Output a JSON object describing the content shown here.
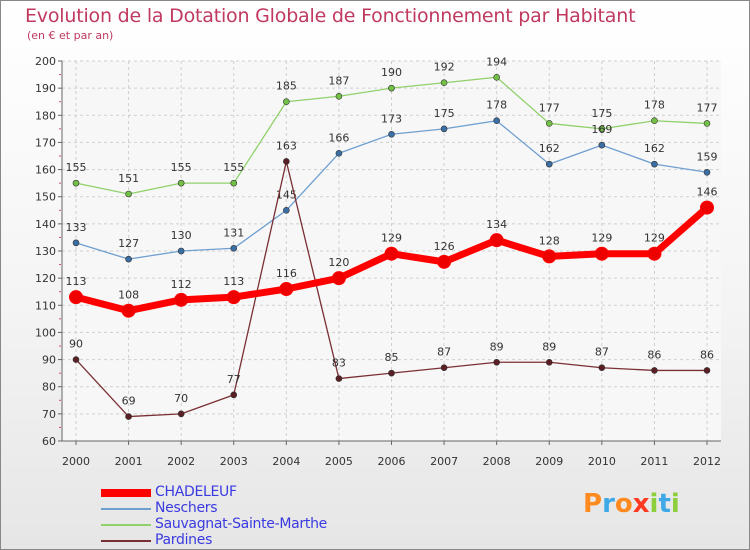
{
  "chart_data": {
    "type": "line",
    "title": "Evolution de la Dotation Globale de Fonctionnement par Habitant",
    "subtitle": "(en € et par an)",
    "x": [
      "2000",
      "2001",
      "2002",
      "2003",
      "2004",
      "2005",
      "2006",
      "2007",
      "2008",
      "2009",
      "2010",
      "2011",
      "2012"
    ],
    "ylim": [
      60,
      200
    ],
    "yticks": [
      "60",
      "70",
      "80",
      "90",
      "100",
      "110",
      "120",
      "130",
      "140",
      "150",
      "160",
      "170",
      "180",
      "190",
      "200"
    ],
    "grid": true,
    "legend": "bottom-left",
    "series": [
      {
        "name": "Sauvagnat-Sainte-Marthe",
        "color": "#8fd16a",
        "marker": "#72c045",
        "values": [
          155,
          151,
          155,
          155,
          185,
          187,
          190,
          192,
          194,
          177,
          175,
          178,
          177
        ]
      },
      {
        "name": "Neschers",
        "color": "#6f9fd0",
        "marker": "#3b6ea5",
        "values": [
          133,
          127,
          130,
          131,
          145,
          166,
          173,
          175,
          178,
          162,
          169,
          162,
          159
        ]
      },
      {
        "name": "Pardines",
        "color": "#7a2f35",
        "marker": "#5a1e24",
        "values": [
          90,
          69,
          70,
          77,
          163,
          83,
          85,
          87,
          89,
          89,
          87,
          86,
          86
        ]
      },
      {
        "name": "CHADELEUF",
        "color": "#ff0000",
        "marker": "#ee0000",
        "values": [
          113,
          108,
          112,
          113,
          116,
          120,
          129,
          126,
          134,
          128,
          129,
          129,
          146
        ]
      }
    ]
  },
  "legend": {
    "items": [
      "CHADELEUF",
      "Neschers",
      "Sauvagnat-Sainte-Marthe",
      "Pardines"
    ]
  },
  "brand": {
    "letters": [
      "P",
      "r",
      "o",
      "x",
      "i",
      "t",
      "i"
    ],
    "colors": [
      "#ff8a1f",
      "#3fa9e8",
      "#ff8a1f",
      "#ff3a20",
      "#8ccf3c",
      "#3fa9e8",
      "#8ccf3c"
    ]
  }
}
